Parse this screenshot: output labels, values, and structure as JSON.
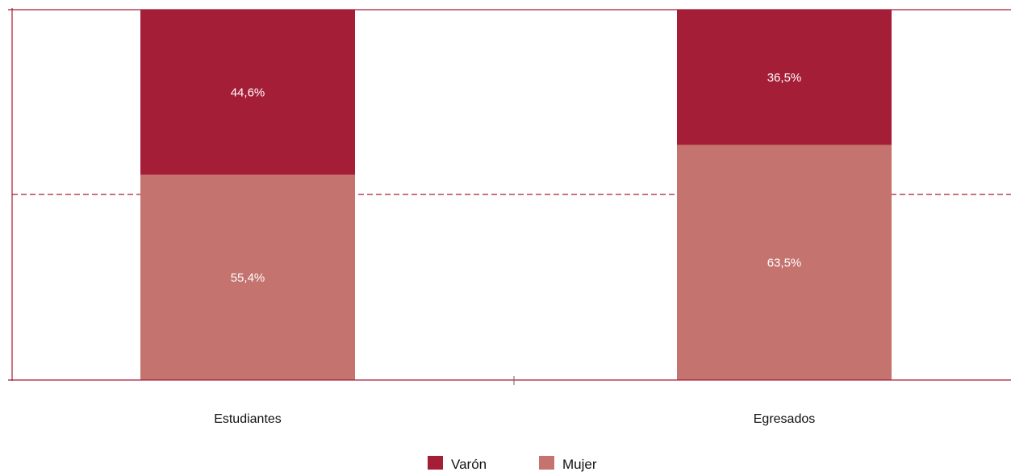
{
  "chart_data": {
    "type": "bar",
    "stacked": true,
    "percent_stacked": true,
    "categories": [
      "Estudiantes",
      "Egresados"
    ],
    "series": [
      {
        "name": "Mujer",
        "values": [
          55.4,
          63.5
        ],
        "labels": [
          "55,4%",
          "63,5%"
        ],
        "color": "#c4736e"
      },
      {
        "name": "Varón",
        "values": [
          44.6,
          36.5
        ],
        "labels": [
          "44,6%",
          "36,5%"
        ],
        "color": "#a51e37"
      }
    ],
    "ylim": [
      0,
      100
    ],
    "reference_line": 50,
    "title": "",
    "xlabel": "",
    "ylabel": "",
    "legend_position": "bottom-center",
    "legend_order": [
      "Varón",
      "Mujer"
    ],
    "axis_color": "#a51e37"
  }
}
